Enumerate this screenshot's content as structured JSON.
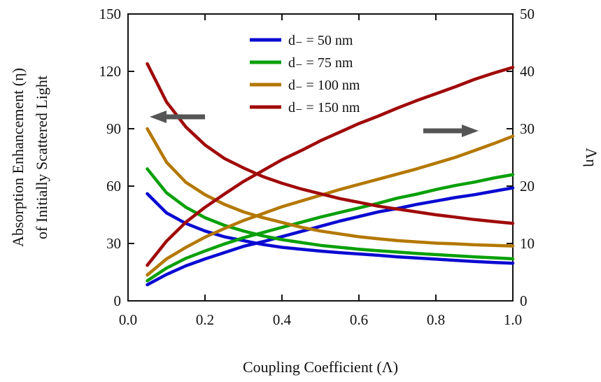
{
  "chart_data": {
    "type": "line",
    "xlabel": "Coupling Coefficient (Λ)",
    "ylabel_line1": "Absorption Enhancement (η)",
    "ylabel_line2": "of Initially Scattered Light",
    "y2label": "Λη",
    "xlim": [
      0.0,
      1.0
    ],
    "ylim": [
      0,
      150
    ],
    "y2lim": [
      0,
      50
    ],
    "xticks": [
      "0.0",
      "0.2",
      "0.4",
      "0.6",
      "0.8",
      "1.0"
    ],
    "yticks": [
      "0",
      "30",
      "60",
      "90",
      "120",
      "150"
    ],
    "y2ticks": [
      "0",
      "10",
      "20",
      "30",
      "40",
      "50"
    ],
    "x": [
      0.05,
      0.1,
      0.15,
      0.2,
      0.25,
      0.3,
      0.35,
      0.4,
      0.45,
      0.5,
      0.55,
      0.6,
      0.65,
      0.7,
      0.75,
      0.8,
      0.85,
      0.9,
      0.95,
      1.0
    ],
    "series": [
      {
        "name": "d₋ = 50 nm",
        "color": "#0a0ad2",
        "eta": [
          56,
          46,
          40.5,
          36.5,
          33.5,
          31.5,
          29.5,
          28,
          27,
          26,
          25.2,
          24.5,
          23.8,
          23,
          22.4,
          21.8,
          21.2,
          20.6,
          20.1,
          19.7
        ],
        "lambda_eta": [
          2.8,
          4.6,
          6.1,
          7.3,
          8.4,
          9.5,
          10.3,
          11.2,
          12.1,
          13.0,
          13.9,
          14.7,
          15.5,
          16.1,
          16.8,
          17.4,
          18.0,
          18.5,
          19.1,
          19.7
        ]
      },
      {
        "name": "d₋ = 75 nm",
        "color": "#0aa00a",
        "eta": [
          69,
          56.5,
          49,
          43.5,
          39.5,
          36.5,
          34,
          32,
          30.5,
          29,
          28,
          27,
          26.2,
          25.5,
          24.8,
          24.2,
          23.6,
          23,
          22.5,
          22
        ],
        "lambda_eta": [
          3.5,
          5.7,
          7.4,
          8.7,
          9.9,
          11.0,
          11.9,
          12.8,
          13.7,
          14.6,
          15.4,
          16.2,
          17.0,
          17.9,
          18.6,
          19.4,
          20.1,
          20.7,
          21.4,
          22.0
        ]
      },
      {
        "name": "d₋ = 100 nm",
        "color": "#b47800",
        "eta": [
          90,
          72.5,
          62,
          55.5,
          50.5,
          46.5,
          43.5,
          41,
          38.5,
          36.5,
          35,
          33.5,
          32.5,
          31.5,
          30.8,
          30.2,
          29.8,
          29.3,
          29,
          28.7
        ],
        "lambda_eta": [
          4.5,
          7.3,
          9.3,
          11.1,
          12.6,
          14.0,
          15.2,
          16.4,
          17.4,
          18.4,
          19.4,
          20.3,
          21.2,
          22.1,
          23.0,
          24.0,
          25.0,
          26.2,
          27.4,
          28.7
        ]
      },
      {
        "name": "d₋ = 150 nm",
        "color": "#a00a0a",
        "eta": [
          124,
          104,
          91,
          81.5,
          74.5,
          69.5,
          65,
          61.5,
          58.5,
          56,
          53.5,
          51.5,
          49.5,
          48,
          46.5,
          45,
          43.8,
          42.5,
          41.5,
          40.5
        ],
        "lambda_eta": [
          6.2,
          10.4,
          13.7,
          16.3,
          18.6,
          20.8,
          22.7,
          24.6,
          26.2,
          27.9,
          29.4,
          30.9,
          32.2,
          33.6,
          34.9,
          36.1,
          37.3,
          38.6,
          39.7,
          40.7
        ]
      }
    ],
    "legend_position": "top-center",
    "annotations": [
      "left arrow → left axis (η)",
      "right arrow → right axis (Λη)"
    ]
  }
}
